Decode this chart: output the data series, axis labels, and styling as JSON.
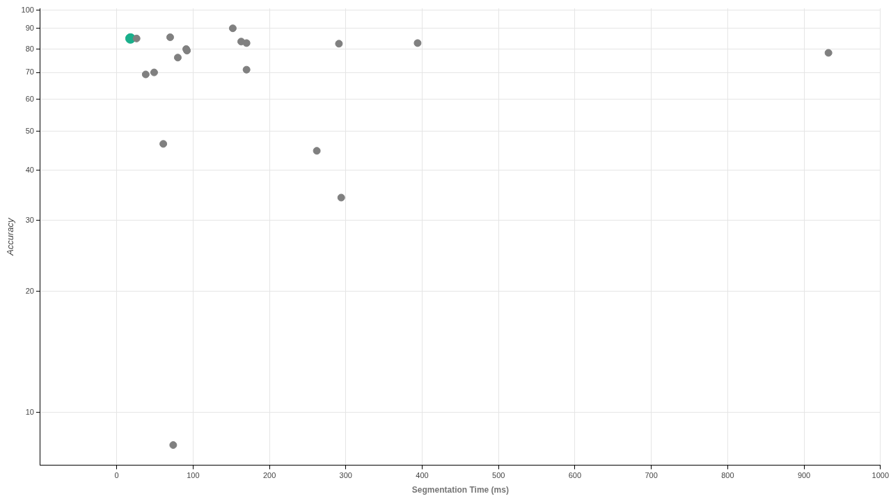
{
  "chart_data": {
    "type": "scatter",
    "xlabel": "Segmentation Time (ms)",
    "ylabel": "Accuracy",
    "xlim": [
      -100,
      1000
    ],
    "xticks": [
      0,
      100,
      200,
      300,
      400,
      500,
      600,
      700,
      800,
      900,
      1000
    ],
    "ylim": [
      7.4,
      101
    ],
    "yticks": [
      10,
      20,
      30,
      40,
      50,
      60,
      70,
      80,
      90,
      100
    ],
    "log": "y",
    "grid": true,
    "legend": false,
    "marker": "circle",
    "series": [
      {
        "color": "#808080",
        "x": [
          26,
          70,
          38,
          49,
          80,
          91,
          92,
          61,
          74,
          152,
          163,
          170,
          170,
          262,
          294,
          291,
          394,
          932
        ],
        "values": [
          85,
          85.6,
          69.2,
          70,
          76.2,
          80,
          79.3,
          46.5,
          8.3,
          90.1,
          83.5,
          82.8,
          71.1,
          44.7,
          34.2,
          82.5,
          82.8,
          78.3
        ]
      },
      {
        "color": "#1aaf8b",
        "x": [
          18
        ],
        "values": [
          85
        ]
      }
    ]
  }
}
